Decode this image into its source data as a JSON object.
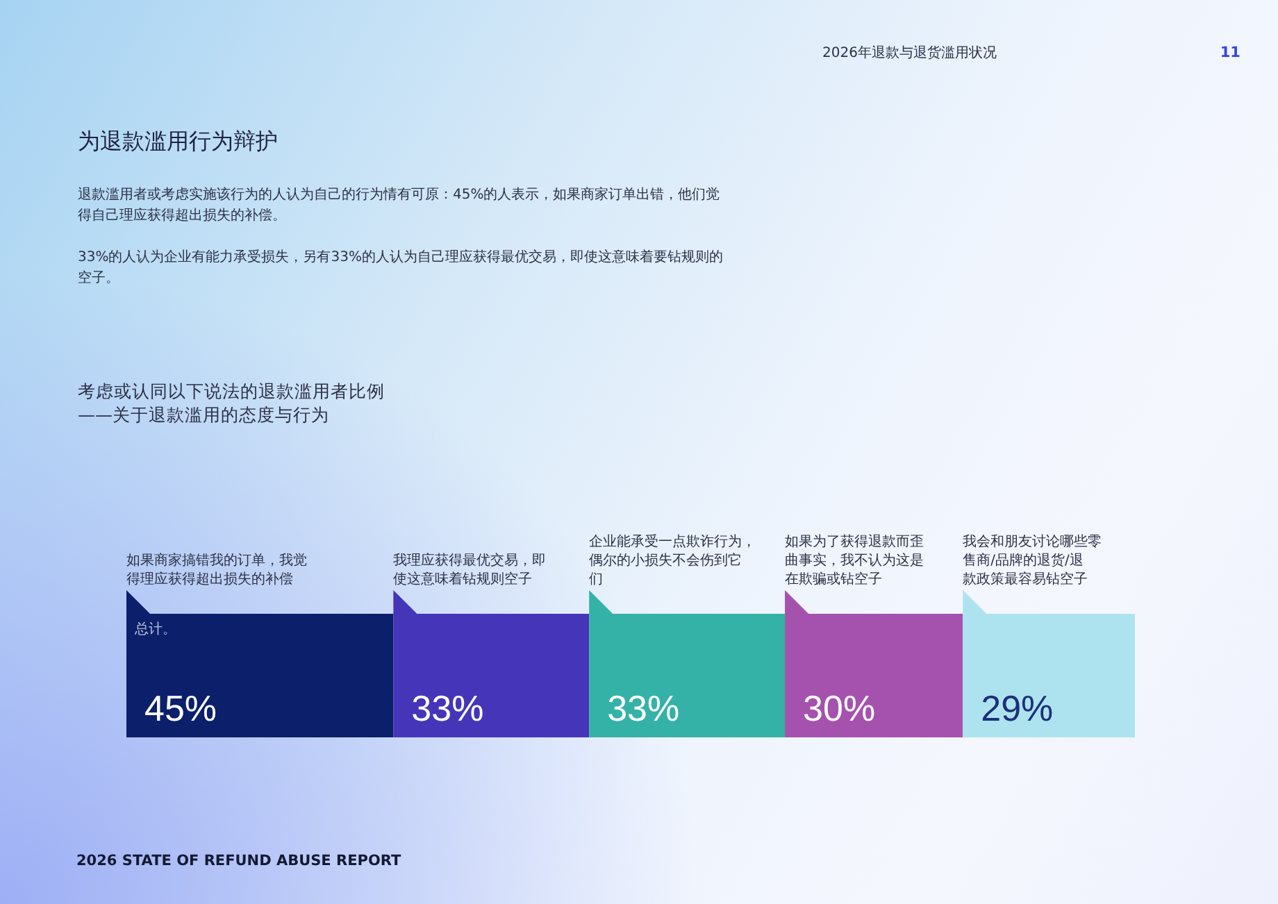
{
  "chart_data": {
    "type": "bar",
    "orientation": "horizontal",
    "stacked": true,
    "title": "考虑或认同以下说法的退款滥用者比例",
    "subtitle": "——关于退款滥用的态度与行为",
    "categories": [
      null
    ],
    "series": [
      {
        "name": "如果商家搞错我的订单，我觉得理应获得超出损失的补偿",
        "color": "#0b1f6b",
        "values": [
          45
        ],
        "value_labels": [
          "45%"
        ]
      },
      {
        "name": "我理应获得最优交易，即使这意味着钻规则空子",
        "color": "#4535b8",
        "values": [
          33
        ],
        "value_labels": [
          "33%"
        ]
      },
      {
        "name": "企业能承受一点欺诈行为，偶尔的小损失不会伤到它们",
        "color": "#34b2a8",
        "values": [
          33
        ],
        "value_labels": [
          "33%"
        ]
      },
      {
        "name": "如果为了获得退款而歪曲事实，我不认为这是在欺骗或钻空子",
        "color": "#a552ae",
        "values": [
          30
        ],
        "value_labels": [
          "30%"
        ]
      },
      {
        "name": "我会和朋友讨论哪些零售商/品牌的退货/退款政策最容易钻空子",
        "color": "#ade3ef",
        "values": [
          29
        ],
        "value_labels": [
          "29%"
        ]
      }
    ],
    "annotations": [
      "2026年退款与退货滥用状况",
      "11",
      "为退款滥用行为辩护",
      "退款滥用者或考虑实施该行为的人认为自己的行为情有可原：45%的人表示，如果商家订单出错，他们觉得自己理应获得超出损失的补偿。",
      "33%的人认为企业有能力承受损失，另有33%的人认为自己理应获得最优交易，即使这意味着要钻规则的空子。",
      "2026 STATE OF REFUND ABUSE REPORT",
      "总计。"
    ]
  }
}
